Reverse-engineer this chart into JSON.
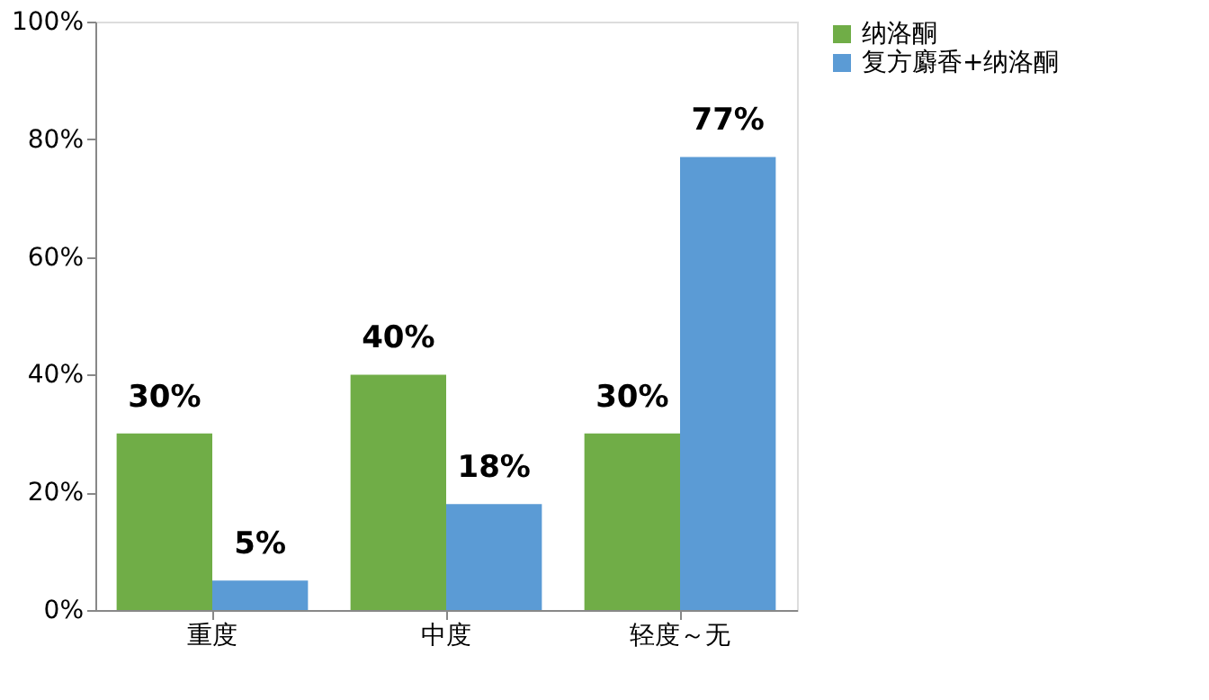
{
  "chart_data": {
    "type": "bar",
    "categories": [
      "重度",
      "中度",
      "轻度～无"
    ],
    "series": [
      {
        "name": "纳洛酮",
        "color": "#70ad47",
        "values": [
          30,
          40,
          30
        ],
        "value_labels": [
          "30%",
          "40%",
          "30%"
        ]
      },
      {
        "name": "复方麝香+纳洛酮",
        "color": "#5b9bd5",
        "values": [
          5,
          18,
          77
        ],
        "value_labels": [
          "5%",
          "18%",
          "77%"
        ]
      }
    ],
    "ylim": [
      0,
      100
    ],
    "yticks": [
      {
        "value": 0,
        "label": "0%"
      },
      {
        "value": 20,
        "label": "20%"
      },
      {
        "value": 40,
        "label": "40%"
      },
      {
        "value": 60,
        "label": "60%"
      },
      {
        "value": 80,
        "label": "80%"
      },
      {
        "value": 100,
        "label": "100%"
      }
    ],
    "grid": false,
    "legend": "right"
  }
}
